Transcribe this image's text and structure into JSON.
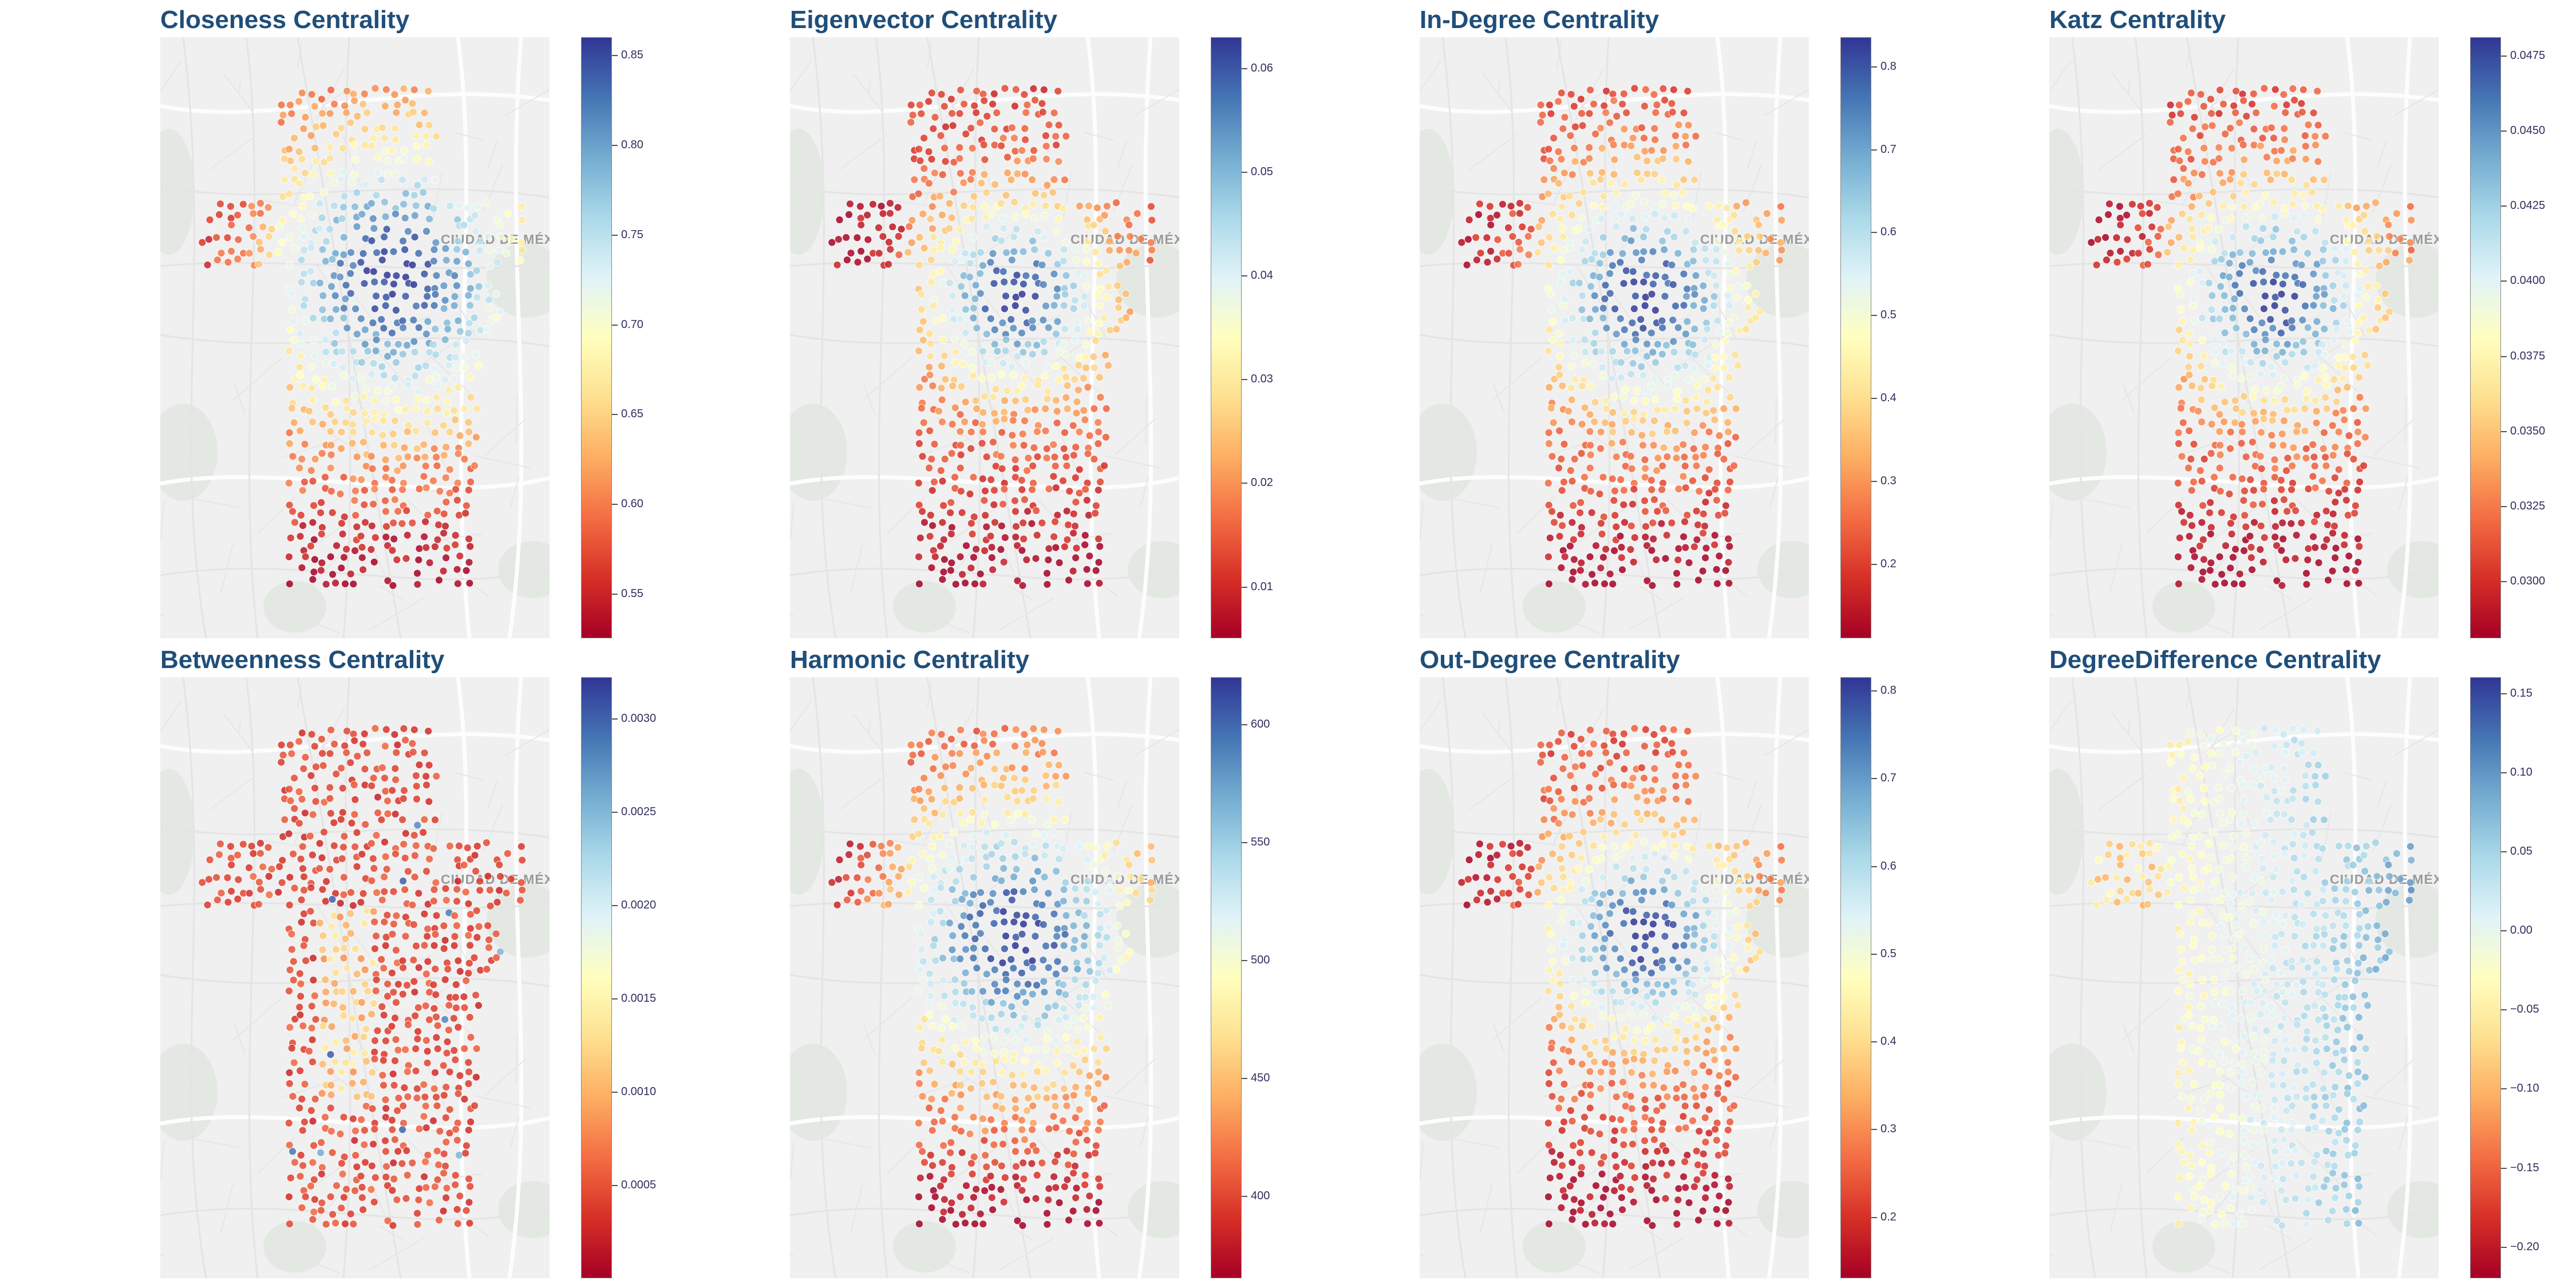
{
  "city_label": "CIUDAD DE MÉXICO",
  "colormap": [
    "#a50026",
    "#d73027",
    "#f46d43",
    "#fdae61",
    "#fee090",
    "#ffffbf",
    "#e0f3f8",
    "#abd9e9",
    "#74add1",
    "#4575b4",
    "#313695"
  ],
  "chart_data": [
    {
      "type": "scatter",
      "title": "Closeness Centrality",
      "range": [
        0.525,
        0.86
      ],
      "ticks": [
        0.55,
        0.6,
        0.65,
        0.7,
        0.75,
        0.8,
        0.85
      ],
      "tick_labels": [
        "0.55",
        "0.60",
        "0.65",
        "0.70",
        "0.75",
        "0.80",
        "0.85"
      ],
      "pattern": "center-high",
      "center": [
        0.6,
        0.4
      ],
      "spread": [
        0.4,
        0.27
      ],
      "low_edge": "south"
    },
    {
      "type": "scatter",
      "title": "Eigenvector Centrality",
      "range": [
        0.005,
        0.063
      ],
      "ticks": [
        0.01,
        0.02,
        0.03,
        0.04,
        0.05,
        0.06
      ],
      "tick_labels": [
        "0.01",
        "0.02",
        "0.03",
        "0.04",
        "0.05",
        "0.06"
      ],
      "pattern": "center-high",
      "center": [
        0.58,
        0.43
      ],
      "spread": [
        0.27,
        0.18
      ],
      "low_edge": "south"
    },
    {
      "type": "scatter",
      "title": "In-Degree Centrality",
      "range": [
        0.11,
        0.835
      ],
      "ticks": [
        0.2,
        0.3,
        0.4,
        0.5,
        0.6,
        0.7,
        0.8
      ],
      "tick_labels": [
        "0.2",
        "0.3",
        "0.4",
        "0.5",
        "0.6",
        "0.7",
        "0.8"
      ],
      "pattern": "center-high",
      "center": [
        0.58,
        0.43
      ],
      "spread": [
        0.32,
        0.22
      ],
      "low_edge": "south"
    },
    {
      "type": "scatter",
      "title": "Katz Centrality",
      "range": [
        0.0281,
        0.0481
      ],
      "ticks": [
        0.03,
        0.0325,
        0.035,
        0.0375,
        0.04,
        0.0425,
        0.045,
        0.0475
      ],
      "tick_labels": [
        "0.0300",
        "0.0325",
        "0.0350",
        "0.0375",
        "0.0400",
        "0.0425",
        "0.0450",
        "0.0475"
      ],
      "pattern": "center-high",
      "center": [
        0.58,
        0.43
      ],
      "spread": [
        0.3,
        0.2
      ],
      "low_edge": "south"
    },
    {
      "type": "scatter",
      "title": "Betweenness Centrality",
      "range": [
        0.0,
        0.00322
      ],
      "ticks": [
        0.0005,
        0.001,
        0.0015,
        0.002,
        0.0025,
        0.003
      ],
      "tick_labels": [
        "0.0005",
        "0.0010",
        "0.0015",
        "0.0020",
        "0.0025",
        "0.0030"
      ],
      "pattern": "corridor-low",
      "center": [
        0.5,
        0.45
      ],
      "spread": [
        0.22,
        0.3
      ],
      "low_edge": "none"
    },
    {
      "type": "scatter",
      "title": "Harmonic Centrality",
      "range": [
        365,
        620
      ],
      "ticks": [
        400,
        450,
        500,
        550,
        600
      ],
      "tick_labels": [
        "400",
        "450",
        "500",
        "550",
        "600"
      ],
      "pattern": "center-high",
      "center": [
        0.58,
        0.43
      ],
      "spread": [
        0.38,
        0.26
      ],
      "low_edge": "south"
    },
    {
      "type": "scatter",
      "title": "Out-Degree Centrality",
      "range": [
        0.13,
        0.815
      ],
      "ticks": [
        0.2,
        0.3,
        0.4,
        0.5,
        0.6,
        0.7,
        0.8
      ],
      "tick_labels": [
        "0.2",
        "0.3",
        "0.4",
        "0.5",
        "0.6",
        "0.7",
        "0.8"
      ],
      "pattern": "center-high",
      "center": [
        0.58,
        0.43
      ],
      "spread": [
        0.3,
        0.2
      ],
      "low_edge": "south"
    },
    {
      "type": "scatter",
      "title": "DegreeDifference Centrality",
      "range": [
        -0.22,
        0.16
      ],
      "ticks": [
        -0.2,
        -0.15,
        -0.1,
        -0.05,
        0.0,
        0.05,
        0.1,
        0.15
      ],
      "tick_labels": [
        "−0.20",
        "−0.15",
        "−0.10",
        "−0.05",
        "0.00",
        "0.05",
        "0.10",
        "0.15"
      ],
      "pattern": "east-high",
      "center": [
        0.7,
        0.45
      ],
      "spread": [
        0.4,
        0.4
      ],
      "low_edge": "west"
    }
  ]
}
